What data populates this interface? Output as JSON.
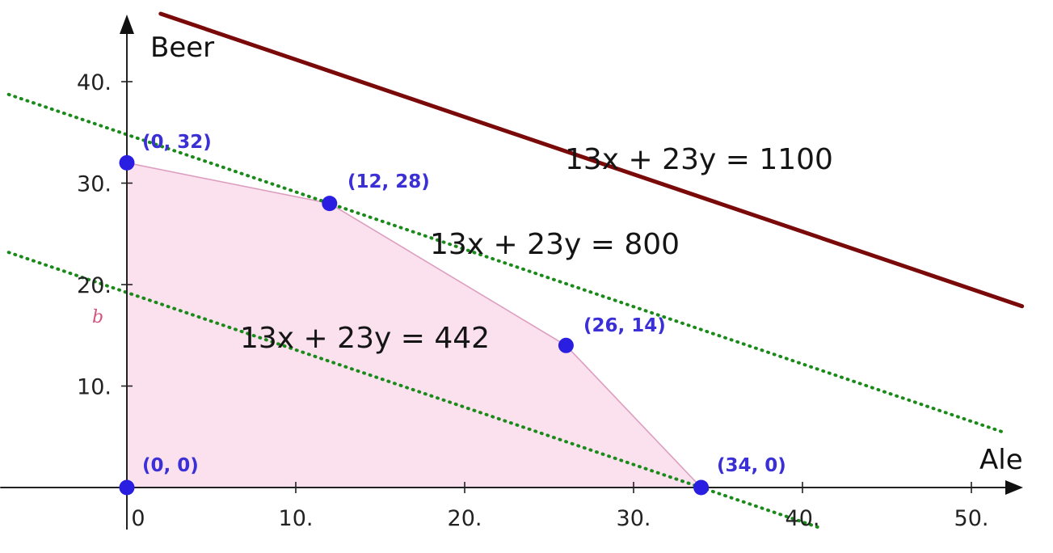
{
  "chart_data": {
    "type": "line",
    "xlabel": "Ale",
    "ylabel": "Beer",
    "xlim": [
      -7,
      53
    ],
    "ylim": [
      -4,
      46
    ],
    "x_ticks": [
      {
        "value": 0,
        "label": "0"
      },
      {
        "value": 10,
        "label": "10."
      },
      {
        "value": 20,
        "label": "20."
      },
      {
        "value": 30,
        "label": "30."
      },
      {
        "value": 40,
        "label": "40."
      },
      {
        "value": 50,
        "label": "50."
      }
    ],
    "y_ticks": [
      {
        "value": 10,
        "label": "10."
      },
      {
        "value": 20,
        "label": "20."
      },
      {
        "value": 30,
        "label": "30."
      },
      {
        "value": 40,
        "label": "40."
      }
    ],
    "feasible_region": {
      "label": "b",
      "color": "#f9d6e8",
      "edge_color": "#dd9fc0",
      "polygon": [
        [
          0,
          0
        ],
        [
          0,
          32
        ],
        [
          12,
          28
        ],
        [
          26,
          14
        ],
        [
          34,
          0
        ]
      ]
    },
    "vertices": [
      {
        "x": 0,
        "y": 32,
        "label": "(0, 32)"
      },
      {
        "x": 12,
        "y": 28,
        "label": "(12, 28)"
      },
      {
        "x": 26,
        "y": 14,
        "label": "(26, 14)"
      },
      {
        "x": 0,
        "y": 0,
        "label": "(0, 0)"
      },
      {
        "x": 34,
        "y": 0,
        "label": "(34, 0)"
      }
    ],
    "vertex_color": "#2a1ee0",
    "series": [
      {
        "label": "13x + 23y = 442",
        "a": 13,
        "b": 23,
        "c": 442,
        "x_range": [
          -7,
          41
        ],
        "style": "dotted",
        "color": "#1a8a1a"
      },
      {
        "label": "13x + 23y = 800",
        "a": 13,
        "b": 23,
        "c": 800,
        "x_range": [
          -7,
          52
        ],
        "style": "dotted",
        "color": "#1a8a1a"
      },
      {
        "label": "13x + 23y = 1100",
        "a": 13,
        "b": 23,
        "c": 1100,
        "x_range": [
          2,
          53
        ],
        "style": "solid",
        "color": "#7a0a0a"
      }
    ]
  }
}
